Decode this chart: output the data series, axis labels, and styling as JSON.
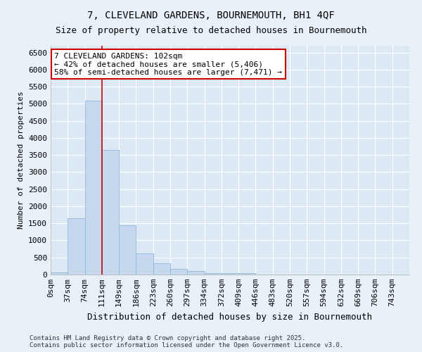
{
  "title1": "7, CLEVELAND GARDENS, BOURNEMOUTH, BH1 4QF",
  "title2": "Size of property relative to detached houses in Bournemouth",
  "xlabel": "Distribution of detached houses by size in Bournemouth",
  "ylabel": "Number of detached properties",
  "bin_labels": [
    "0sqm",
    "37sqm",
    "74sqm",
    "111sqm",
    "149sqm",
    "186sqm",
    "223sqm",
    "260sqm",
    "297sqm",
    "334sqm",
    "372sqm",
    "409sqm",
    "446sqm",
    "483sqm",
    "520sqm",
    "557sqm",
    "594sqm",
    "632sqm",
    "669sqm",
    "706sqm",
    "743sqm"
  ],
  "bar_heights": [
    60,
    1650,
    5100,
    3650,
    1450,
    620,
    340,
    160,
    100,
    50,
    50,
    40,
    0,
    0,
    0,
    0,
    0,
    0,
    0,
    0,
    0
  ],
  "bar_color": "#c5d8ed",
  "bar_edge_color": "#8fb8d8",
  "vline_x": 3.0,
  "vline_color": "#cc0000",
  "annotation_text": "7 CLEVELAND GARDENS: 102sqm\n← 42% of detached houses are smaller (5,406)\n58% of semi-detached houses are larger (7,471) →",
  "annotation_box_color": "#ffffff",
  "annotation_box_edge": "#cc0000",
  "ylim": [
    0,
    6700
  ],
  "yticks": [
    0,
    500,
    1000,
    1500,
    2000,
    2500,
    3000,
    3500,
    4000,
    4500,
    5000,
    5500,
    6000,
    6500
  ],
  "bg_color": "#e8f0f8",
  "plot_bg_color": "#dce8f4",
  "footer_text": "Contains HM Land Registry data © Crown copyright and database right 2025.\nContains public sector information licensed under the Open Government Licence v3.0.",
  "title1_fontsize": 10,
  "title2_fontsize": 9,
  "xlabel_fontsize": 9,
  "ylabel_fontsize": 8,
  "tick_fontsize": 8,
  "annot_fontsize": 8
}
